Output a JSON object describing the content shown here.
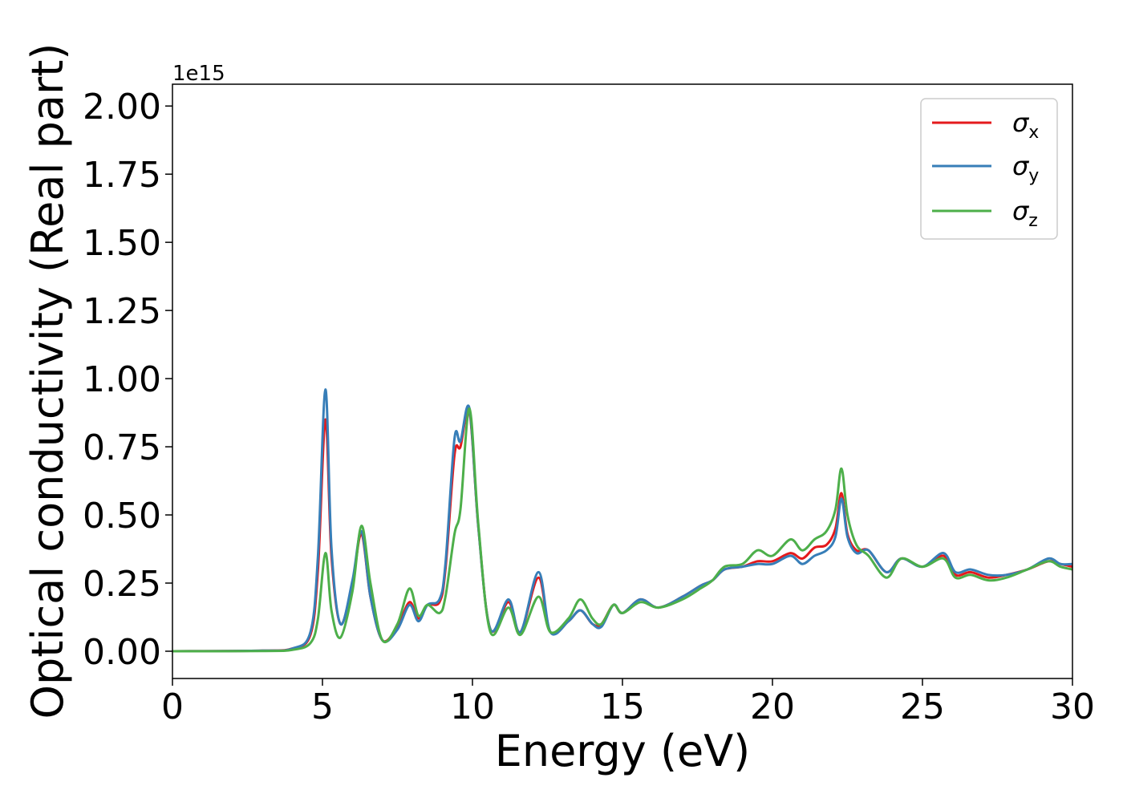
{
  "chart_data": {
    "type": "line",
    "xlabel": "Energy (eV)",
    "ylabel": "Optical conductivity (Real part)",
    "y_offset_label": "1e15",
    "xlim": [
      0,
      30
    ],
    "ylim": [
      -0.1,
      2.08
    ],
    "x_ticks": [
      0,
      5,
      10,
      15,
      20,
      25,
      30
    ],
    "x_tick_labels": [
      "0",
      "5",
      "10",
      "15",
      "20",
      "25",
      "30"
    ],
    "y_ticks": [
      0,
      0.25,
      0.5,
      0.75,
      1.0,
      1.25,
      1.5,
      1.75,
      2.0
    ],
    "y_tick_labels": [
      "0.00",
      "0.25",
      "0.50",
      "0.75",
      "1.00",
      "1.25",
      "1.50",
      "1.75",
      "2.00"
    ],
    "grid": false,
    "legend_position": "top-right",
    "series": [
      {
        "name": "σx",
        "legend_base": "σ",
        "legend_sub": "x",
        "color": "#e41a1c",
        "x": [
          0,
          3.0,
          4.0,
          4.6,
          4.85,
          5.1,
          5.3,
          5.6,
          6.0,
          6.3,
          6.6,
          7.0,
          7.5,
          7.9,
          8.2,
          8.5,
          8.9,
          9.1,
          9.4,
          9.6,
          9.9,
          10.2,
          10.6,
          11.2,
          11.6,
          12.2,
          12.6,
          13.2,
          13.6,
          14.0,
          14.3,
          14.7,
          15.0,
          15.6,
          16.2,
          17.0,
          17.6,
          18.0,
          18.4,
          19.0,
          19.5,
          20.0,
          20.6,
          21.0,
          21.4,
          21.8,
          22.1,
          22.3,
          22.5,
          22.8,
          23.2,
          23.8,
          24.3,
          25.0,
          25.7,
          26.1,
          26.6,
          27.2,
          27.8,
          28.5,
          29.2,
          29.6,
          30.0
        ],
        "y": [
          0,
          0.002,
          0.01,
          0.06,
          0.3,
          0.85,
          0.35,
          0.1,
          0.25,
          0.43,
          0.2,
          0.04,
          0.09,
          0.18,
          0.12,
          0.17,
          0.18,
          0.3,
          0.72,
          0.75,
          0.88,
          0.45,
          0.08,
          0.18,
          0.07,
          0.27,
          0.07,
          0.11,
          0.15,
          0.1,
          0.1,
          0.17,
          0.14,
          0.19,
          0.16,
          0.2,
          0.24,
          0.26,
          0.3,
          0.31,
          0.33,
          0.33,
          0.36,
          0.34,
          0.38,
          0.39,
          0.45,
          0.58,
          0.43,
          0.37,
          0.37,
          0.29,
          0.34,
          0.31,
          0.35,
          0.28,
          0.29,
          0.27,
          0.28,
          0.3,
          0.33,
          0.32,
          0.31
        ]
      },
      {
        "name": "σy",
        "legend_base": "σ",
        "legend_sub": "y",
        "color": "#377eb8",
        "x": [
          0,
          3.0,
          4.0,
          4.6,
          4.85,
          5.1,
          5.3,
          5.6,
          6.0,
          6.3,
          6.6,
          7.0,
          7.5,
          7.9,
          8.2,
          8.5,
          8.9,
          9.1,
          9.4,
          9.6,
          9.9,
          10.2,
          10.6,
          11.2,
          11.6,
          12.2,
          12.6,
          13.2,
          13.6,
          14.0,
          14.3,
          14.7,
          15.0,
          15.6,
          16.2,
          17.0,
          17.6,
          18.0,
          18.4,
          19.0,
          19.5,
          20.0,
          20.6,
          21.0,
          21.4,
          21.8,
          22.1,
          22.3,
          22.5,
          22.8,
          23.2,
          23.8,
          24.3,
          25.0,
          25.7,
          26.1,
          26.6,
          27.2,
          27.8,
          28.5,
          29.2,
          29.6,
          30.0
        ],
        "y": [
          0,
          0.002,
          0.01,
          0.07,
          0.35,
          0.96,
          0.38,
          0.1,
          0.26,
          0.44,
          0.2,
          0.04,
          0.08,
          0.17,
          0.11,
          0.17,
          0.19,
          0.32,
          0.78,
          0.77,
          0.89,
          0.45,
          0.08,
          0.19,
          0.07,
          0.29,
          0.07,
          0.11,
          0.15,
          0.1,
          0.09,
          0.17,
          0.14,
          0.19,
          0.16,
          0.2,
          0.24,
          0.26,
          0.3,
          0.31,
          0.32,
          0.32,
          0.35,
          0.32,
          0.35,
          0.37,
          0.42,
          0.56,
          0.42,
          0.36,
          0.37,
          0.29,
          0.34,
          0.31,
          0.36,
          0.29,
          0.3,
          0.28,
          0.28,
          0.3,
          0.34,
          0.32,
          0.32
        ]
      },
      {
        "name": "σz",
        "legend_base": "σ",
        "legend_sub": "z",
        "color": "#4daf4a",
        "x": [
          0,
          3.0,
          4.0,
          4.6,
          4.85,
          5.1,
          5.3,
          5.6,
          6.0,
          6.3,
          6.6,
          7.0,
          7.5,
          7.9,
          8.2,
          8.5,
          8.9,
          9.1,
          9.4,
          9.6,
          9.9,
          10.2,
          10.6,
          11.2,
          11.6,
          12.2,
          12.6,
          13.2,
          13.6,
          14.0,
          14.3,
          14.7,
          15.0,
          15.6,
          16.2,
          17.0,
          17.6,
          18.0,
          18.4,
          19.0,
          19.5,
          20.0,
          20.6,
          21.0,
          21.4,
          21.8,
          22.1,
          22.3,
          22.5,
          22.8,
          23.2,
          23.8,
          24.3,
          25.0,
          25.7,
          26.1,
          26.6,
          27.2,
          27.8,
          28.5,
          29.2,
          29.6,
          30.0
        ],
        "y": [
          0,
          0.001,
          0.005,
          0.03,
          0.12,
          0.36,
          0.15,
          0.05,
          0.22,
          0.46,
          0.25,
          0.04,
          0.1,
          0.23,
          0.13,
          0.17,
          0.14,
          0.2,
          0.43,
          0.52,
          0.89,
          0.46,
          0.07,
          0.16,
          0.06,
          0.2,
          0.07,
          0.12,
          0.19,
          0.12,
          0.1,
          0.17,
          0.14,
          0.18,
          0.16,
          0.19,
          0.23,
          0.26,
          0.31,
          0.32,
          0.37,
          0.35,
          0.41,
          0.37,
          0.41,
          0.44,
          0.52,
          0.67,
          0.5,
          0.39,
          0.35,
          0.27,
          0.34,
          0.31,
          0.34,
          0.27,
          0.28,
          0.26,
          0.27,
          0.3,
          0.33,
          0.31,
          0.3
        ]
      }
    ]
  }
}
